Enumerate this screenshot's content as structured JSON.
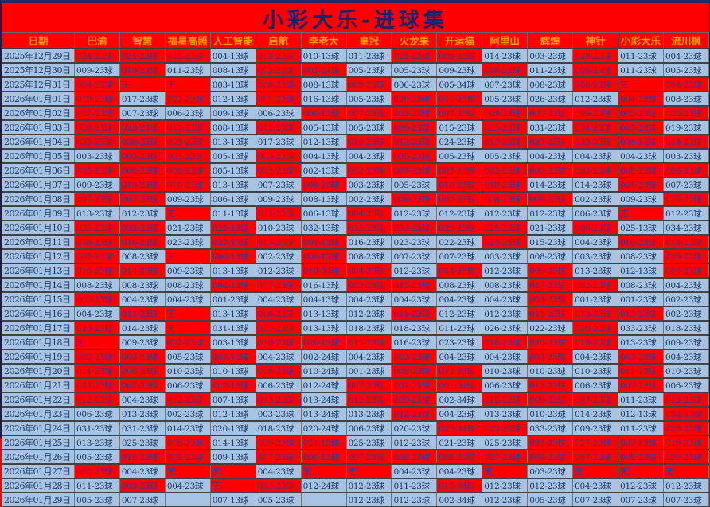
{
  "title": "小彩大乐-进球集",
  "colors": {
    "red_cell": "#fe0000",
    "blue_cell": "#a7c3e1",
    "navy_text": "#1d3867",
    "red_cell_text": "#2e3c96",
    "header_text": "#ff9f00",
    "title_text": "#1c2268"
  },
  "none_label": "无",
  "columns": [
    "日期",
    "巴渝",
    "智慧",
    "福星高照",
    "人工智能",
    "启航",
    "李老大",
    "皇冠",
    "火龙果",
    "开运猫",
    "阿里山",
    "辉煌",
    "神针",
    "小彩大乐",
    "流川枫"
  ],
  "rows": [
    {
      "date": "2025年12月29日",
      "cells": [
        "r:024-23球",
        "r:021-23球",
        "r:015-23球",
        "b:004-13球",
        "r:014-23球",
        "b:010-13球",
        "b:011-23球",
        "r:021-23球",
        "r:009-23球",
        "b:014-23球",
        "b:003-23球",
        "r:028-23球",
        "b:011-23球",
        "b:004-23球"
      ]
    },
    {
      "date": "2025年12月30日",
      "cells": [
        "b:009-23球",
        "r:010-23球",
        "b:011-23球",
        "b:008-13球",
        "r:002-23球",
        "r:002-24球",
        "b:005-23球",
        "b:005-23球",
        "b:009-23球",
        "r:008-23球",
        "b:011-23球",
        "r:008-23球",
        "b:011-23球",
        "b:005-23球"
      ]
    },
    {
      "date": "2025年12月31日",
      "cells": [
        "r:004-23球",
        "r:无",
        "r:无",
        "b:003-13球",
        "r:008-23球",
        "b:008-13球",
        "r:008-23球",
        "b:006-23球",
        "b:005-34球",
        "b:007-23球",
        "b:008-23球",
        "r:008-23球",
        "r:无",
        "r:004-23球"
      ]
    },
    {
      "date": "2026年01月01日",
      "cells": [
        "r:019-23球",
        "b:017-23球",
        "r:022-23球",
        "b:012-13球",
        "r:007-23球",
        "b:016-13球",
        "b:005-23球",
        "r:020-23球",
        "r:010-23球",
        "b:005-23球",
        "b:026-23球",
        "b:012-23球",
        "r:004-23球",
        "b:008-23球"
      ]
    },
    {
      "date": "2026年01月02日",
      "cells": [
        "r:007-23球",
        "b:007-23球",
        "b:006-23球",
        "b:009-13球",
        "b:006-23球",
        "r:006-13球",
        "r:007-23球",
        "r:003-23球",
        "r:007-23球",
        "r:009-23球",
        "r:007-23球",
        "r:009-23球",
        "r:005-23球",
        "r:005-23球"
      ]
    },
    {
      "date": "2026年01月03日",
      "cells": [
        "r:020-23球",
        "r:020-23球",
        "r:011-23球",
        "b:008-13球",
        "r:012-23球",
        "b:005-13球",
        "b:005-23球",
        "r:009-23球",
        "b:015-23球",
        "r:023-23球",
        "b:031-23球",
        "r:034-23球",
        "r:005-23球",
        "b:019-23球"
      ]
    },
    {
      "date": "2026年01月04日",
      "cells": [
        "r:035-23球",
        "r:038-23球",
        "r:009-23球",
        "b:013-13球",
        "b:017-23球",
        "b:012-13球",
        "r:016-23球",
        "r:012-23球",
        "b:024-23球",
        "r:017-23球",
        "r:027-23球",
        "r:033-23球",
        "r:034-13球",
        "r:014-23球"
      ]
    },
    {
      "date": "2026年01月05日",
      "cells": [
        "b:003-23球",
        "r:005-23球",
        "r:005-23球",
        "b:005-13球",
        "r:003-23球",
        "b:004-13球",
        "b:004-23球",
        "r:005-23球",
        "b:005-23球",
        "b:005-23球",
        "b:004-23球",
        "b:004-23球",
        "b:004-23球",
        "b:003-23球"
      ]
    },
    {
      "date": "2026年01月06日",
      "cells": [
        "r:005-23球",
        "r:008-23球",
        "r:008-23球",
        "b:005-13球",
        "r:003-23球",
        "b:002-13球",
        "r:002-23球",
        "r:007-23球",
        "r:007-23球",
        "r:002-23球",
        "r:003-23球",
        "r:002-23球",
        "r:008-23球",
        "r:006-23球"
      ]
    },
    {
      "date": "2026年01月07日",
      "cells": [
        "b:009-23球",
        "r:010-23球",
        "r:010-23球",
        "b:013-13球",
        "b:007-23球",
        "r:008-13球",
        "b:003-23球",
        "b:005-23球",
        "r:010-23球",
        "r:010-23球",
        "b:014-23球",
        "b:014-23球",
        "r:005-23球",
        "b:007-23球"
      ]
    },
    {
      "date": "2026年01月08日",
      "cells": [
        "r:007-23球",
        "r:007-23球",
        "b:009-23球",
        "b:006-13球",
        "b:009-23球",
        "b:008-13球",
        "b:002-23球",
        "r:008-23球",
        "r:003-23球",
        "r:008-23球",
        "r:008-23球",
        "b:002-23球",
        "b:009-23球",
        "r:007-23球"
      ]
    },
    {
      "date": "2026年01月09日",
      "cells": [
        "b:013-23球",
        "b:012-23球",
        "r:无",
        "b:011-13球",
        "r:011-23球",
        "b:006-13球",
        "r:004-23球",
        "b:012-23球",
        "b:012-23球",
        "b:012-23球",
        "b:012-23球",
        "b:006-23球",
        "r:无",
        "b:012-23球"
      ]
    },
    {
      "date": "2026年01月10日",
      "cells": [
        "r:033-23球",
        "r:033-23球",
        "b:021-23球",
        "r:028-13球",
        "b:010-23球",
        "b:032-13球",
        "r:035-23球",
        "r:033-23球",
        "r:029-23球",
        "r:025-23球",
        "b:021-23球",
        "r:006-23球",
        "b:025-13球",
        "b:034-23球"
      ]
    },
    {
      "date": "2026年01月11日",
      "cells": [
        "r:016-23球",
        "r:016-23球",
        "b:023-23球",
        "r:022-13球",
        "r:013-23球",
        "r:004-13球",
        "b:016-23球",
        "b:023-23球",
        "b:022-23球",
        "r:021-23球",
        "b:015-23球",
        "b:004-23球",
        "r:016-23球",
        "r:014-23球"
      ]
    },
    {
      "date": "2026年01月12日",
      "cells": [
        "r:005-23球",
        "b:008-23球",
        "r:无",
        "r:006-13球",
        "b:002-23球",
        "r:006-13球",
        "b:008-23球",
        "b:007-23球",
        "b:007-23球",
        "b:003-23球",
        "b:008-23球",
        "b:003-23球",
        "b:008-23球",
        "r:005-23球"
      ]
    },
    {
      "date": "2026年01月13日",
      "cells": [
        "r:010-23球",
        "r:014-23球",
        "b:009-23球",
        "b:013-13球",
        "b:012-23球",
        "r:010-34球",
        "r:004-23球",
        "b:012-23球",
        "r:014-23球",
        "b:012-23球",
        "r:009-23球",
        "b:013-23球",
        "b:012-13球",
        "r:009-23球"
      ]
    },
    {
      "date": "2026年01月14日",
      "cells": [
        "b:008-23球",
        "b:008-23球",
        "b:008-23球",
        "r:004-13球",
        "r:007-23球",
        "b:016-13球",
        "r:002-23球",
        "r:017-23球",
        "b:008-23球",
        "b:008-23球",
        "r:017-23球",
        "r:002-23球",
        "b:008-23球",
        "b:004-23球"
      ]
    },
    {
      "date": "2026年01月15日",
      "cells": [
        "r:003-23球",
        "b:004-23球",
        "b:004-23球",
        "b:001-23球",
        "b:004-23球",
        "b:004-13球",
        "b:004-23球",
        "b:004-23球",
        "b:004-23球",
        "b:004-23球",
        "r:003-23球",
        "b:001-23球",
        "b:001-23球",
        "b:002-23球"
      ]
    },
    {
      "date": "2026年01月16日",
      "cells": [
        "b:004-23球",
        "r:011-23球",
        "r:无",
        "b:013-13球",
        "r:008-23球",
        "b:013-13球",
        "b:012-23球",
        "r:011-23球",
        "b:012-23球",
        "b:012-23球",
        "r:011-23球",
        "r:013-23球",
        "r:013-23球",
        "b:002-23球"
      ]
    },
    {
      "date": "2026年01月17日",
      "cells": [
        "r:020-23球",
        "b:014-23球",
        "r:无",
        "b:031-13球",
        "r:017-23球",
        "b:013-13球",
        "b:018-23球",
        "b:018-23球",
        "b:011-23球",
        "b:026-23球",
        "b:022-23球",
        "r:020-23球",
        "b:033-23球",
        "b:018-23球"
      ]
    },
    {
      "date": "2026年01月18日",
      "cells": [
        "r:无",
        "b:009-23球",
        "r:002-23球",
        "b:003-13球",
        "r:010-23球",
        "r:026-13球",
        "r:015-23球",
        "b:016-23球",
        "b:023-23球",
        "r:018-23球",
        "r:020-23球",
        "r:018-23球",
        "b:013-23球",
        "b:009-23球"
      ]
    },
    {
      "date": "2026年01月19日",
      "cells": [
        "r:002-23球",
        "r:002-23球",
        "b:005-23球",
        "r:003-13球",
        "b:004-23球",
        "b:002-24球",
        "b:004-23球",
        "r:003-23球",
        "b:004-23球",
        "b:004-23球",
        "r:003-23球",
        "b:004-23球",
        "r:003-23球",
        "b:004-23球"
      ]
    },
    {
      "date": "2026年01月20日",
      "cells": [
        "r:011-23球",
        "r:006-23球",
        "b:010-23球",
        "b:010-13球",
        "r:008-23球",
        "b:010-24球",
        "b:001-23球",
        "r:008-23球",
        "r:012-23球",
        "b:010-23球",
        "b:010-23球",
        "b:010-23球",
        "r:011-23球",
        "b:010-23球"
      ]
    },
    {
      "date": "2026年01月21日",
      "cells": [
        "r:007-23球",
        "r:007-23球",
        "b:006-23球",
        "r:012-13球",
        "b:006-23球",
        "b:012-24球",
        "r:007-23球",
        "r:007-23球",
        "r:001-34球",
        "b:006-23球",
        "r:012-23球",
        "b:006-23球",
        "r:007-23球",
        "b:006-23球"
      ]
    },
    {
      "date": "2026年01月22日",
      "cells": [
        "r:012-23球",
        "b:004-23球",
        "r:012-23球",
        "b:007-13球",
        "r:013-23球",
        "b:013-24球",
        "r:012-23球",
        "r:009-23球",
        "b:002-34球",
        "r:012-23球",
        "r:009-23球",
        "r:007-23球",
        "b:011-23球",
        "r:012-23球"
      ]
    },
    {
      "date": "2026年01月23日",
      "cells": [
        "b:006-23球",
        "b:013-23球",
        "b:002-23球",
        "b:012-13球",
        "b:003-23球",
        "b:013-24球",
        "b:013-23球",
        "r:012-23球",
        "b:004-23球",
        "b:013-23球",
        "b:010-23球",
        "b:014-23球",
        "b:012-13球",
        "r:004-23球"
      ]
    },
    {
      "date": "2026年01月24日",
      "cells": [
        "b:031-23球",
        "b:031-23球",
        "b:014-23球",
        "b:020-13球",
        "b:018-23球",
        "b:020-24球",
        "b:006-23球",
        "b:020-23球",
        "r:029-34球",
        "r:023-23球",
        "b:033-23球",
        "b:009-23球",
        "b:011-23球",
        "r:005-23球"
      ]
    },
    {
      "date": "2026年01月25日",
      "cells": [
        "b:013-23球",
        "b:025-23球",
        "r:008-23球",
        "b:014-13球",
        "r:009-23球",
        "r:024-13球",
        "b:025-23球",
        "b:012-23球",
        "b:021-23球",
        "b:025-23球",
        "r:027-23球",
        "r:027-23球",
        "r:007-13球",
        "r:019-23球"
      ]
    },
    {
      "date": "2026年01月26日",
      "cells": [
        "b:005-23球",
        "r:010-23球",
        "r:008-23球",
        "b:009-13球",
        "r:007-23球",
        "r:006-13球",
        "r:007-23球",
        "r:008-23球",
        "r:008-23球",
        "r:007-23球",
        "r:008-23球",
        "r:007-23球",
        "r:008-23球",
        "r:009-23球"
      ]
    },
    {
      "date": "2026年01月27日",
      "cells": [
        "r:002-23球",
        "b:004-23球",
        "r:无",
        "r:无",
        "b:004-23球",
        "r:无",
        "r:无",
        "b:004-23球",
        "b:004-23球",
        "r:无",
        "b:003-23球",
        "r:无",
        "r:无",
        "r:无"
      ]
    },
    {
      "date": "2026年01月28日",
      "cells": [
        "b:011-23球",
        "r:003-23球",
        "b:004-23球",
        "r:无",
        "r:003-23球",
        "b:012-24球",
        "b:012-23球",
        "b:011-23球",
        "r:010-34球",
        "b:012-23球",
        "b:012-23球",
        "b:004-23球",
        "b:012-23球",
        "b:012-23球"
      ]
    },
    {
      "date": "2026年01月29日",
      "cells": [
        "b:005-23球",
        "b:007-23球",
        "b:",
        "b:007-13球",
        "b:005-23球",
        "b:",
        "b:012-23球",
        "b:012-23球",
        "b:002-34球",
        "b:012-23球",
        "b:005-23球",
        "b:007-23球",
        "b:007-23球",
        "b:007-23球"
      ]
    }
  ]
}
